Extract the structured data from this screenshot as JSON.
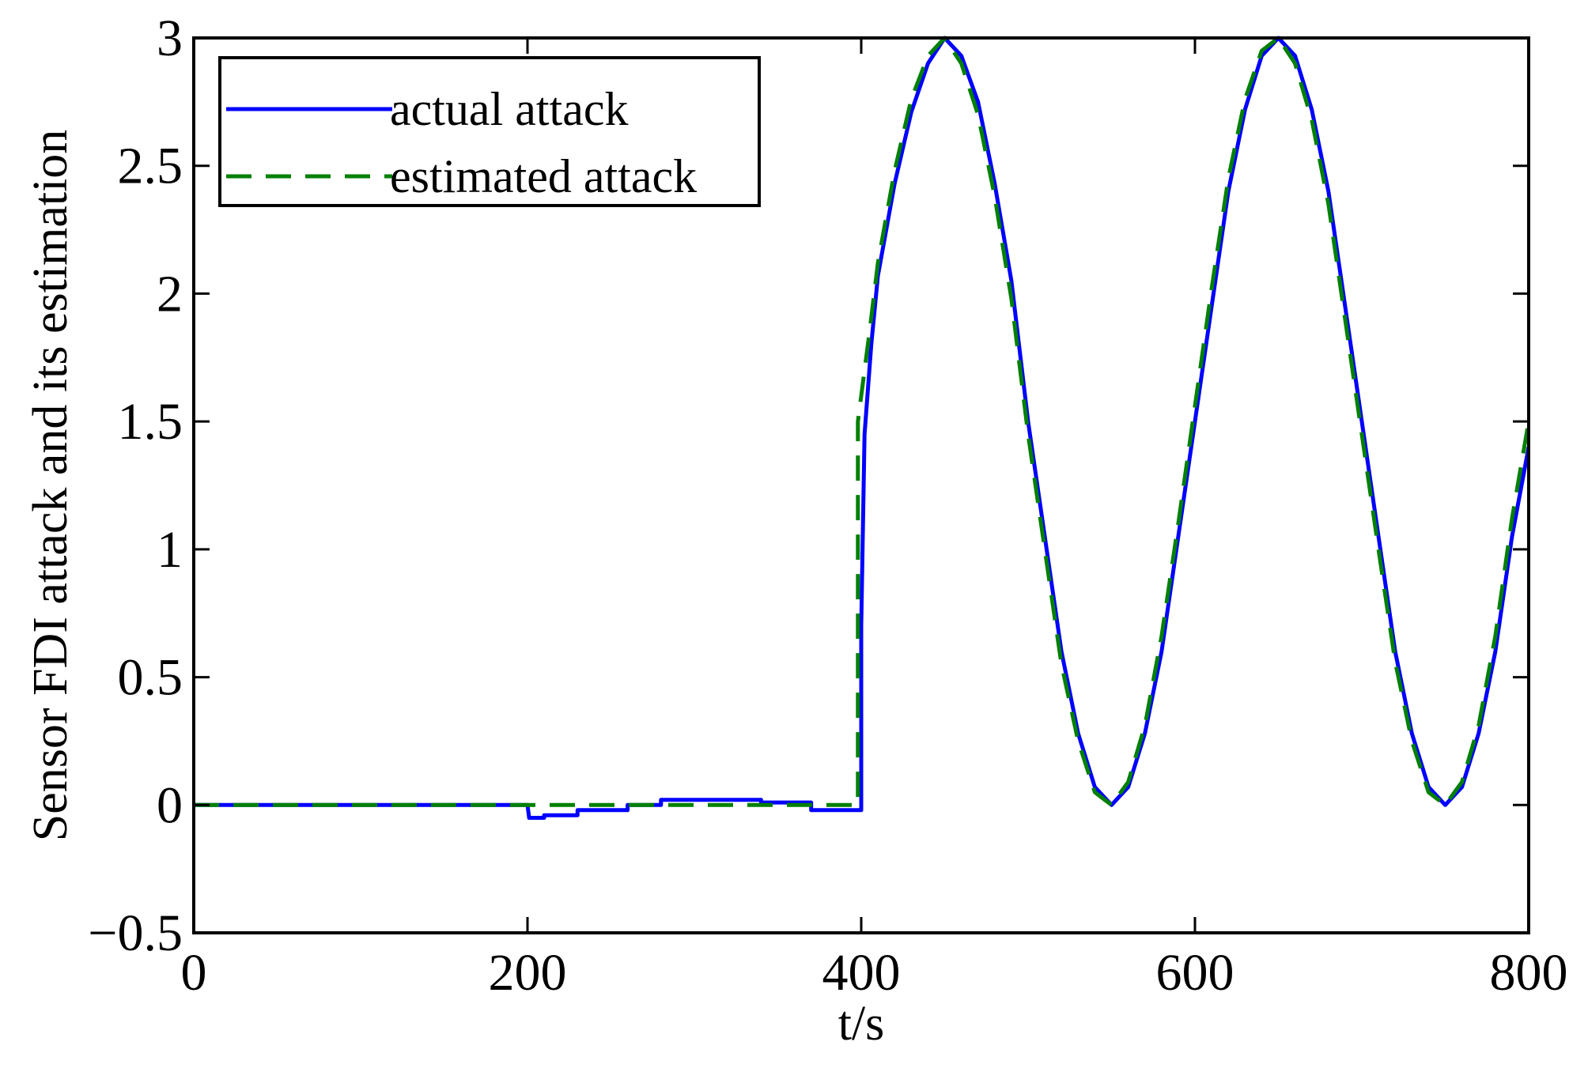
{
  "chart_data": {
    "type": "line",
    "xlabel": "t/s",
    "ylabel": "Sensor FDI attack and its estimation",
    "xlim": [
      0,
      800
    ],
    "ylim": [
      -0.5,
      3
    ],
    "xticks": [
      0,
      200,
      400,
      600,
      800
    ],
    "xtick_labels": [
      "0",
      "200",
      "400",
      "600",
      "800"
    ],
    "yticks": [
      -0.5,
      0,
      0.5,
      1,
      1.5,
      2,
      2.5,
      3
    ],
    "ytick_labels": [
      "−0.5",
      "0",
      "0.5",
      "1",
      "1.5",
      "2",
      "2.5",
      "3"
    ],
    "grid": false,
    "legend_position": "top-left",
    "legend": [
      {
        "label": "actual attack",
        "style": "solid",
        "color": "#0000ff"
      },
      {
        "label": "estimated attack",
        "style": "dashed",
        "color": "#008000"
      }
    ],
    "series": [
      {
        "name": "actual attack",
        "color": "#0000ff",
        "style": "solid",
        "points": [
          [
            0,
            0
          ],
          [
            200,
            0
          ],
          [
            201,
            -0.05
          ],
          [
            210,
            -0.05
          ],
          [
            210,
            -0.04
          ],
          [
            230,
            -0.04
          ],
          [
            230,
            -0.02
          ],
          [
            260,
            -0.02
          ],
          [
            260,
            0
          ],
          [
            280,
            0
          ],
          [
            280,
            0.02
          ],
          [
            340,
            0.02
          ],
          [
            340,
            0.01
          ],
          [
            370,
            0.01
          ],
          [
            370,
            -0.02
          ],
          [
            400,
            -0.02
          ],
          [
            400,
            0.7
          ],
          [
            402,
            1.45
          ],
          [
            406,
            1.8
          ],
          [
            410,
            2.07
          ],
          [
            420,
            2.43
          ],
          [
            430,
            2.71
          ],
          [
            440,
            2.9
          ],
          [
            450,
            3
          ],
          [
            460,
            2.93
          ],
          [
            470,
            2.75
          ],
          [
            480,
            2.43
          ],
          [
            490,
            2.05
          ],
          [
            500,
            1.5
          ],
          [
            510,
            1.05
          ],
          [
            520,
            0.6
          ],
          [
            530,
            0.28
          ],
          [
            540,
            0.07
          ],
          [
            550,
            0
          ],
          [
            560,
            0.07
          ],
          [
            570,
            0.28
          ],
          [
            580,
            0.6
          ],
          [
            590,
            1.05
          ],
          [
            600,
            1.5
          ],
          [
            610,
            1.95
          ],
          [
            620,
            2.4
          ],
          [
            630,
            2.72
          ],
          [
            640,
            2.93
          ],
          [
            650,
            3
          ],
          [
            660,
            2.93
          ],
          [
            670,
            2.72
          ],
          [
            680,
            2.4
          ],
          [
            690,
            1.95
          ],
          [
            700,
            1.5
          ],
          [
            710,
            1.05
          ],
          [
            720,
            0.6
          ],
          [
            730,
            0.28
          ],
          [
            740,
            0.07
          ],
          [
            750,
            0
          ],
          [
            760,
            0.07
          ],
          [
            770,
            0.28
          ],
          [
            780,
            0.6
          ],
          [
            790,
            1.05
          ],
          [
            800,
            1.4
          ]
        ]
      },
      {
        "name": "estimated attack",
        "color": "#008000",
        "style": "dashed",
        "points": [
          [
            0,
            0
          ],
          [
            370,
            0
          ],
          [
            370,
            0
          ],
          [
            398,
            0
          ],
          [
            398,
            1.5
          ],
          [
            405,
            1.85
          ],
          [
            410,
            2.12
          ],
          [
            420,
            2.48
          ],
          [
            430,
            2.76
          ],
          [
            440,
            2.93
          ],
          [
            450,
            3
          ],
          [
            460,
            2.9
          ],
          [
            470,
            2.7
          ],
          [
            480,
            2.38
          ],
          [
            490,
            1.98
          ],
          [
            500,
            1.45
          ],
          [
            510,
            1.0
          ],
          [
            520,
            0.55
          ],
          [
            530,
            0.25
          ],
          [
            540,
            0.05
          ],
          [
            550,
            0
          ],
          [
            560,
            0.09
          ],
          [
            570,
            0.31
          ],
          [
            580,
            0.66
          ],
          [
            590,
            1.1
          ],
          [
            600,
            1.56
          ],
          [
            610,
            2.02
          ],
          [
            620,
            2.45
          ],
          [
            630,
            2.76
          ],
          [
            640,
            2.95
          ],
          [
            650,
            3
          ],
          [
            660,
            2.9
          ],
          [
            670,
            2.68
          ],
          [
            680,
            2.35
          ],
          [
            690,
            1.9
          ],
          [
            700,
            1.45
          ],
          [
            710,
            1.0
          ],
          [
            720,
            0.56
          ],
          [
            730,
            0.25
          ],
          [
            740,
            0.05
          ],
          [
            750,
            0
          ],
          [
            760,
            0.09
          ],
          [
            770,
            0.31
          ],
          [
            780,
            0.66
          ],
          [
            790,
            1.12
          ],
          [
            800,
            1.5
          ]
        ]
      }
    ]
  }
}
